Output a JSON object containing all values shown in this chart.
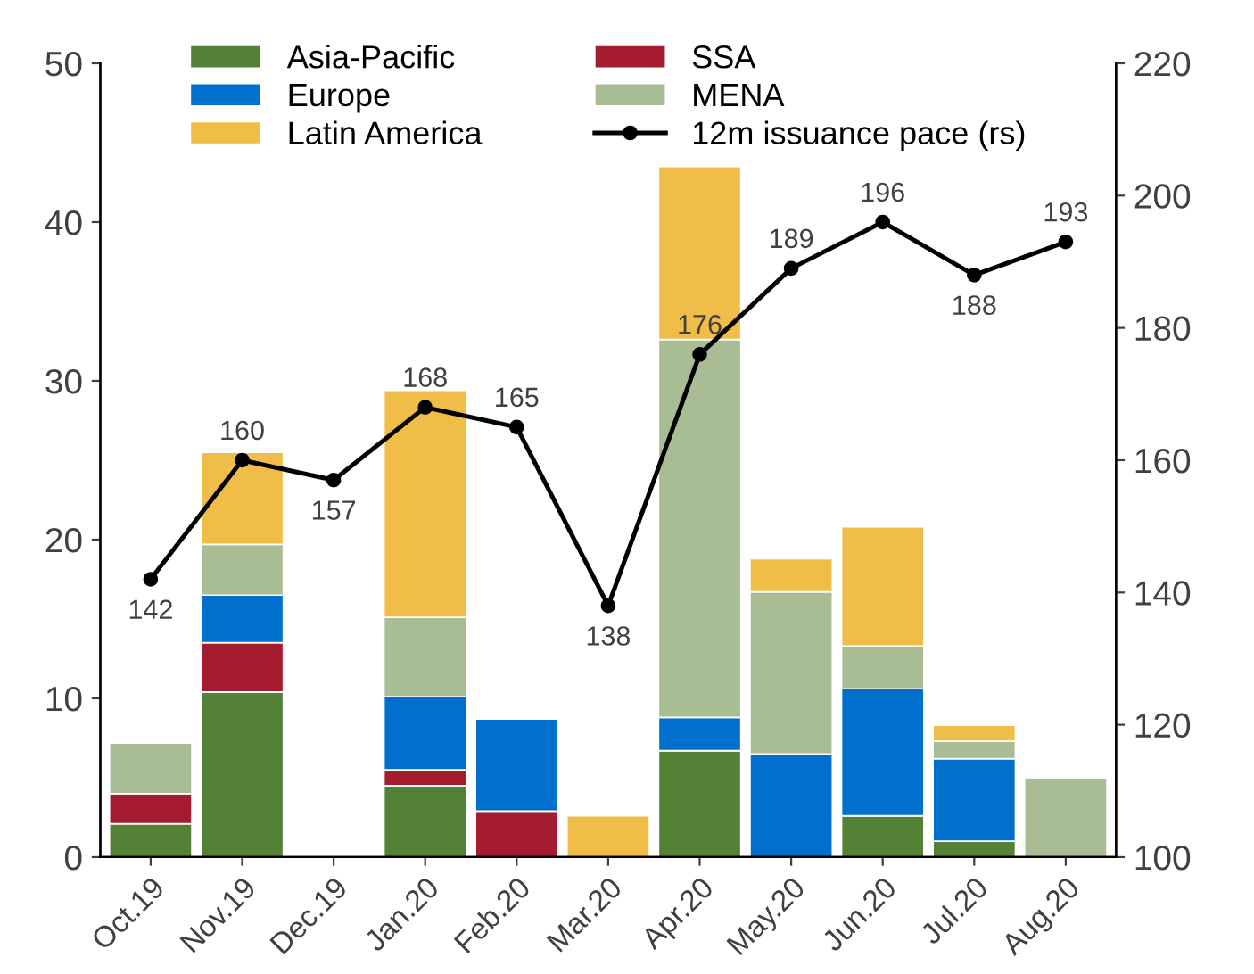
{
  "chart_data": {
    "type": "bar",
    "stacked": true,
    "categories": [
      "Oct.19",
      "Nov.19",
      "Dec.19",
      "Jan.20",
      "Feb.20",
      "Mar.20",
      "Apr.20",
      "May.20",
      "Jun.20",
      "Jul.20",
      "Aug.20"
    ],
    "series": [
      {
        "name": "Asia-Pacific",
        "color": "#538135",
        "values": [
          2.1,
          10.4,
          null,
          4.5,
          null,
          null,
          6.7,
          null,
          2.6,
          1.0,
          null
        ]
      },
      {
        "name": "SSA",
        "color": "#a51c30",
        "values": [
          1.9,
          3.1,
          null,
          1.0,
          2.9,
          null,
          null,
          null,
          null,
          null,
          null
        ]
      },
      {
        "name": "Europe",
        "color": "#0070cc",
        "values": [
          null,
          3.0,
          null,
          4.6,
          5.8,
          null,
          2.1,
          6.5,
          8.0,
          5.2,
          null
        ]
      },
      {
        "name": "MENA",
        "color": "#a9bd94",
        "values": [
          3.2,
          3.2,
          null,
          5.0,
          null,
          null,
          23.8,
          10.2,
          2.7,
          1.1,
          5.0
        ]
      },
      {
        "name": "Latin America",
        "color": "#f0be48",
        "values": [
          null,
          5.8,
          null,
          14.3,
          null,
          2.6,
          10.9,
          2.1,
          7.5,
          1.0,
          null
        ]
      },
      {
        "name": "12m issuance pace (rs)",
        "type": "line",
        "axis": "y2",
        "color": "#000000",
        "marker": "circle",
        "data_labels": true,
        "values": [
          142,
          160,
          157,
          168,
          165,
          138,
          176,
          189,
          196,
          188,
          193
        ]
      }
    ],
    "ylim": [
      0,
      50
    ],
    "yticks": [
      0,
      10,
      20,
      30,
      40,
      50
    ],
    "y2lim": [
      100,
      220
    ],
    "y2ticks": [
      100,
      120,
      140,
      160,
      180,
      200,
      220
    ],
    "grid": false,
    "legend": "top"
  }
}
